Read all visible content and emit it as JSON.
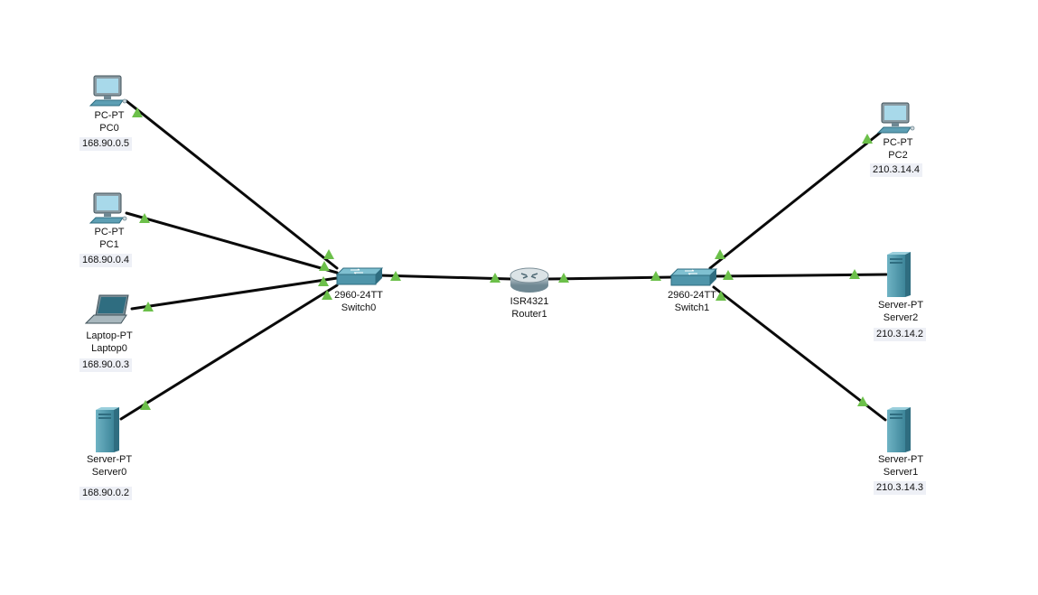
{
  "colors": {
    "link": "#0a0a0a",
    "port_up": "#6cc04a",
    "device": "#4f95aa",
    "device_dark": "#2f6d80",
    "ip_bg": "#eef0f6"
  },
  "devices": {
    "pc0": {
      "type": "pc-icon",
      "model": "PC-PT",
      "name": "PC0",
      "ip": "168.90.0.5"
    },
    "pc1": {
      "type": "pc-icon",
      "model": "PC-PT",
      "name": "PC1",
      "ip": "168.90.0.4"
    },
    "laptop0": {
      "type": "laptop-icon",
      "model": "Laptop-PT",
      "name": "Laptop0",
      "ip": "168.90.0.3"
    },
    "server0": {
      "type": "server-icon",
      "model": "Server-PT",
      "name": "Server0",
      "ip": "168.90.0.2"
    },
    "switch0": {
      "type": "switch-icon",
      "model": "2960-24TT",
      "name": "Switch0"
    },
    "router1": {
      "type": "router-icon",
      "model": "ISR4321",
      "name": "Router1"
    },
    "switch1": {
      "type": "switch-icon",
      "model": "2960-24TT",
      "name": "Switch1"
    },
    "pc2": {
      "type": "pc-icon",
      "model": "PC-PT",
      "name": "PC2",
      "ip": "210.3.14.4"
    },
    "server2": {
      "type": "server-icon",
      "model": "Server-PT",
      "name": "Server2",
      "ip": "210.3.14.2"
    },
    "server1": {
      "type": "server-icon",
      "model": "Server-PT",
      "name": "Server1",
      "ip": "210.3.14.3"
    }
  }
}
